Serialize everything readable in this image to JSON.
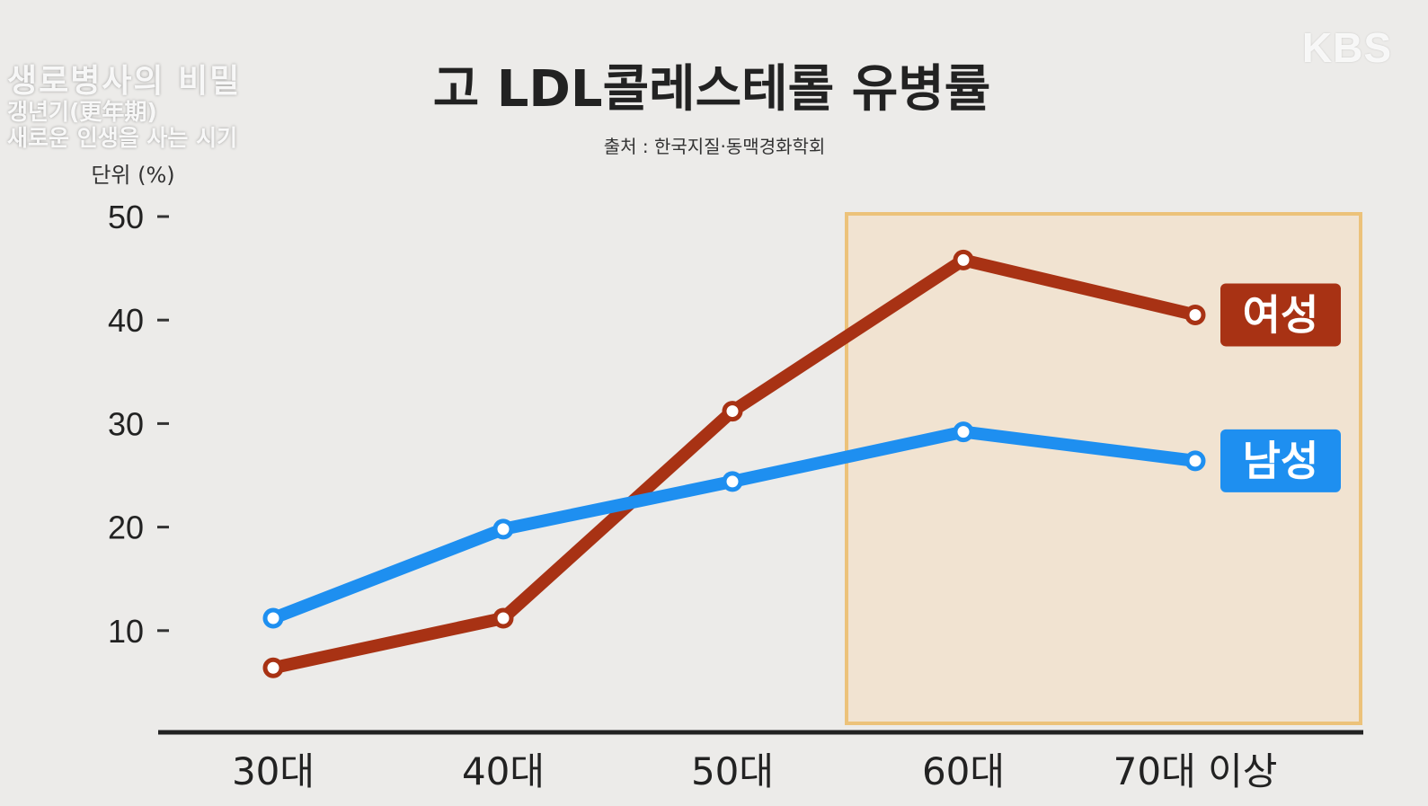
{
  "broadcaster_logo": "KBS",
  "program": {
    "title": "생로병사의 비밀",
    "line1": "갱년기(更年期)",
    "line2": "새로운 인생을 사는 시기"
  },
  "colors": {
    "female": "#a83214",
    "male": "#1e8ff0",
    "highlight_fill": "#f2e2cc",
    "highlight_border": "#ecc27a",
    "axis": "#222222"
  },
  "chart_data": {
    "type": "line",
    "title": "고 LDL콜레스테롤 유병률",
    "subtitle": "출처 : 한국지질·동맥경화학회",
    "unit_label": "단위 (%)",
    "categories": [
      "30대",
      "40대",
      "50대",
      "60대",
      "70대 이상"
    ],
    "yticks": [
      10,
      20,
      30,
      40,
      50
    ],
    "ylim": [
      0,
      50
    ],
    "grid": false,
    "highlight_categories": [
      "60대",
      "70대 이상"
    ],
    "series": [
      {
        "name": "여성",
        "color": "#a83214",
        "values": [
          6.4,
          11.2,
          31.2,
          45.8,
          40.5
        ]
      },
      {
        "name": "남성",
        "color": "#1e8ff0",
        "values": [
          11.2,
          19.8,
          24.4,
          29.2,
          26.4
        ]
      }
    ]
  }
}
